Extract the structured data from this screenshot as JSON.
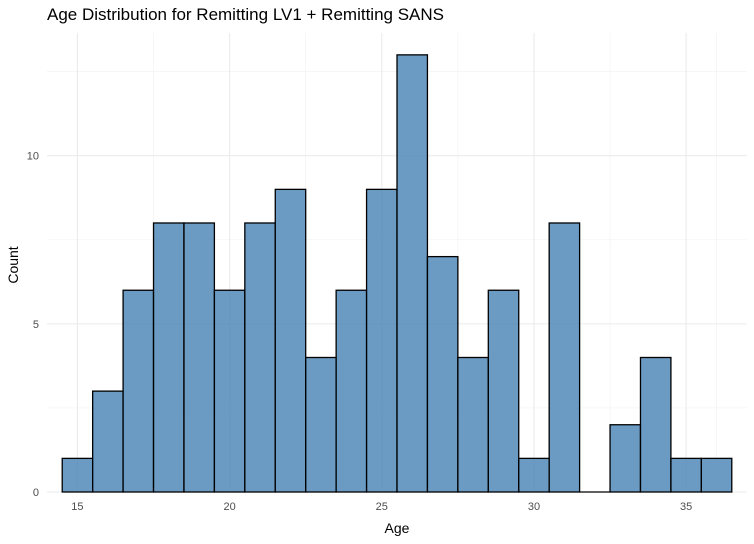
{
  "chart_data": {
    "type": "bar",
    "title": "Age Distribution for Remitting LV1 + Remitting SANS",
    "xlabel": "Age",
    "ylabel": "Count",
    "xlim": [
      14,
      37
    ],
    "ylim": [
      0,
      13.65
    ],
    "x_ticks": [
      15,
      20,
      25,
      30,
      35
    ],
    "y_ticks": [
      0,
      5,
      10
    ],
    "bin_width": 1,
    "bins": [
      {
        "center": 15,
        "count": 1
      },
      {
        "center": 16,
        "count": 3
      },
      {
        "center": 17,
        "count": 6
      },
      {
        "center": 18,
        "count": 8
      },
      {
        "center": 19,
        "count": 8
      },
      {
        "center": 20,
        "count": 6
      },
      {
        "center": 21,
        "count": 8
      },
      {
        "center": 22,
        "count": 9
      },
      {
        "center": 23,
        "count": 4
      },
      {
        "center": 24,
        "count": 6
      },
      {
        "center": 25,
        "count": 9
      },
      {
        "center": 26,
        "count": 13
      },
      {
        "center": 27,
        "count": 7
      },
      {
        "center": 28,
        "count": 4
      },
      {
        "center": 29,
        "count": 6
      },
      {
        "center": 30,
        "count": 1
      },
      {
        "center": 31,
        "count": 8
      },
      {
        "center": 32,
        "count": 0
      },
      {
        "center": 33,
        "count": 2
      },
      {
        "center": 34,
        "count": 4
      },
      {
        "center": 35,
        "count": 1
      },
      {
        "center": 36,
        "count": 1
      }
    ],
    "grid": true,
    "bar_fill": "#4682B4",
    "bar_fill_opacity": 0.8,
    "bar_outline": "#000000"
  }
}
